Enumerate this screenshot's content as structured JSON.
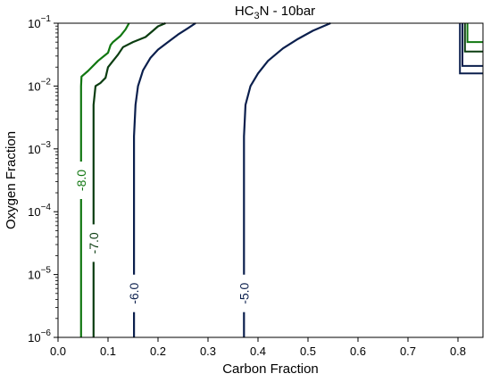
{
  "chart_data": {
    "type": "contour",
    "title_prefix": "HC",
    "title_sub": "3",
    "title_suffix": "N - 10bar",
    "xlabel": "Carbon Fraction",
    "ylabel": "Oxygen Fraction",
    "xlim": [
      0.0,
      0.85
    ],
    "ylim_log10": [
      -6,
      -1
    ],
    "y_scale": "log",
    "grid": false,
    "legend": "none",
    "x_ticks": [
      {
        "value": 0.0,
        "label": "0.0"
      },
      {
        "value": 0.1,
        "label": "0.1"
      },
      {
        "value": 0.2,
        "label": "0.2"
      },
      {
        "value": 0.3,
        "label": "0.3"
      },
      {
        "value": 0.4,
        "label": "0.4"
      },
      {
        "value": 0.5,
        "label": "0.5"
      },
      {
        "value": 0.6,
        "label": "0.6"
      },
      {
        "value": 0.7,
        "label": "0.7"
      },
      {
        "value": 0.8,
        "label": "0.8"
      }
    ],
    "y_ticks": [
      {
        "exp": -6,
        "base": "10",
        "sup": "−6"
      },
      {
        "exp": -5,
        "base": "10",
        "sup": "−5"
      },
      {
        "exp": -4,
        "base": "10",
        "sup": "−4"
      },
      {
        "exp": -3,
        "base": "10",
        "sup": "−3"
      },
      {
        "exp": -2,
        "base": "10",
        "sup": "−2"
      },
      {
        "exp": -1,
        "base": "10",
        "sup": "−1"
      }
    ],
    "contours": [
      {
        "level_label": "-8.0",
        "color": "#117711",
        "label_at": {
          "x": 0.046,
          "logy": -3.5
        },
        "points": [
          [
            0.046,
            -6
          ],
          [
            0.046,
            -2.0
          ],
          [
            0.047,
            -1.85
          ],
          [
            0.06,
            -1.76
          ],
          [
            0.08,
            -1.6
          ],
          [
            0.1,
            -1.47
          ],
          [
            0.105,
            -1.35
          ],
          [
            0.11,
            -1.3
          ],
          [
            0.125,
            -1.2
          ],
          [
            0.135,
            -1.1
          ],
          [
            0.142,
            -1.0
          ]
        ]
      },
      {
        "level_label": "-7.0",
        "color": "#0b3d11",
        "label_at": {
          "x": 0.071,
          "logy": -4.5
        },
        "points": [
          [
            0.071,
            -6
          ],
          [
            0.071,
            -2.3
          ],
          [
            0.075,
            -2.0
          ],
          [
            0.085,
            -1.95
          ],
          [
            0.095,
            -1.87
          ],
          [
            0.1,
            -1.7
          ],
          [
            0.11,
            -1.6
          ],
          [
            0.12,
            -1.5
          ],
          [
            0.13,
            -1.38
          ],
          [
            0.15,
            -1.3
          ],
          [
            0.175,
            -1.22
          ],
          [
            0.19,
            -1.12
          ],
          [
            0.2,
            -1.05
          ],
          [
            0.215,
            -1.0
          ]
        ]
      },
      {
        "level_label": "-6.0",
        "color": "#0b1f4d",
        "label_at": {
          "x": 0.152,
          "logy": -5.3
        },
        "points": [
          [
            0.152,
            -6
          ],
          [
            0.152,
            -2.8
          ],
          [
            0.155,
            -2.3
          ],
          [
            0.16,
            -2.0
          ],
          [
            0.17,
            -1.75
          ],
          [
            0.185,
            -1.55
          ],
          [
            0.2,
            -1.42
          ],
          [
            0.22,
            -1.3
          ],
          [
            0.24,
            -1.18
          ],
          [
            0.26,
            -1.08
          ],
          [
            0.275,
            -1.0
          ]
        ]
      },
      {
        "level_label": "-5.0",
        "color": "#0b1f4d",
        "label_at": {
          "x": 0.372,
          "logy": -5.3
        },
        "points": [
          [
            0.372,
            -6
          ],
          [
            0.372,
            -2.8
          ],
          [
            0.375,
            -2.3
          ],
          [
            0.385,
            -2.0
          ],
          [
            0.4,
            -1.8
          ],
          [
            0.42,
            -1.6
          ],
          [
            0.45,
            -1.4
          ],
          [
            0.48,
            -1.25
          ],
          [
            0.51,
            -1.12
          ],
          [
            0.545,
            -1.0
          ]
        ]
      }
    ],
    "corner_contours": [
      {
        "color": "#117711",
        "points": [
          [
            0.819,
            -1.0
          ],
          [
            0.819,
            -1.3
          ],
          [
            0.85,
            -1.3
          ]
        ]
      },
      {
        "color": "#0b3d11",
        "points": [
          [
            0.814,
            -1.0
          ],
          [
            0.814,
            -1.45
          ],
          [
            0.85,
            -1.45
          ]
        ]
      },
      {
        "color": "#0b1f4d",
        "points": [
          [
            0.809,
            -1.0
          ],
          [
            0.809,
            -1.68
          ],
          [
            0.85,
            -1.68
          ]
        ]
      },
      {
        "color": "#0b1f4d",
        "points": [
          [
            0.804,
            -1.0
          ],
          [
            0.804,
            -1.8
          ],
          [
            0.85,
            -1.8
          ]
        ]
      }
    ]
  }
}
